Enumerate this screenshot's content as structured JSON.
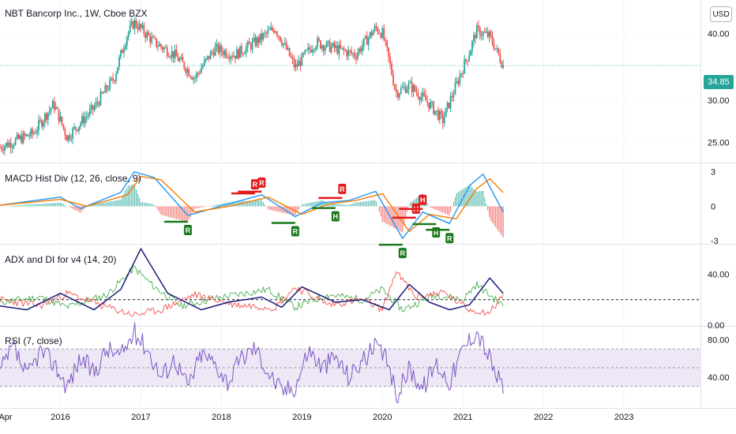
{
  "chart_data": {
    "type": "candlestick",
    "title": "NBT Bancorp Inc., 1W, Cboe BZX",
    "currency": "USD",
    "last_price": "34.85",
    "x_ticks": [
      "Apr",
      "2016",
      "2017",
      "2018",
      "2019",
      "2020",
      "2021",
      "2022",
      "2023"
    ],
    "price_pane": {
      "y_ticks": [
        "40.00",
        "30.00",
        "25.00"
      ],
      "ylim": [
        23,
        45
      ],
      "log_scale": true,
      "series": [
        {
          "date": "2015-04",
          "value": 24.5
        },
        {
          "date": "2015-09",
          "value": 26
        },
        {
          "date": "2015-12",
          "value": 29.5
        },
        {
          "date": "2016-02",
          "value": 25.5
        },
        {
          "date": "2016-06",
          "value": 29
        },
        {
          "date": "2016-09",
          "value": 33
        },
        {
          "date": "2016-11",
          "value": 40
        },
        {
          "date": "2016-12",
          "value": 42
        },
        {
          "date": "2017-03",
          "value": 38.5
        },
        {
          "date": "2017-06",
          "value": 36.5
        },
        {
          "date": "2017-09",
          "value": 33
        },
        {
          "date": "2017-12",
          "value": 37.5
        },
        {
          "date": "2018-03",
          "value": 36.5
        },
        {
          "date": "2018-06",
          "value": 38.5
        },
        {
          "date": "2018-09",
          "value": 41
        },
        {
          "date": "2018-12",
          "value": 34.5
        },
        {
          "date": "2019-03",
          "value": 38.5
        },
        {
          "date": "2019-06",
          "value": 37.5
        },
        {
          "date": "2019-09",
          "value": 36.5
        },
        {
          "date": "2019-12",
          "value": 41
        },
        {
          "date": "2020-01",
          "value": 40
        },
        {
          "date": "2020-03",
          "value": 31
        },
        {
          "date": "2020-05",
          "value": 32
        },
        {
          "date": "2020-08",
          "value": 29.5
        },
        {
          "date": "2020-10",
          "value": 27.5
        },
        {
          "date": "2020-12",
          "value": 32
        },
        {
          "date": "2021-02",
          "value": 37
        },
        {
          "date": "2021-03",
          "value": 40.5
        },
        {
          "date": "2021-05",
          "value": 39.5
        },
        {
          "date": "2021-07",
          "value": 34.85
        }
      ]
    },
    "macd_pane": {
      "title": "MACD Hist Div (12, 26, close, 9)",
      "y_ticks": [
        "3",
        "0",
        "-3"
      ],
      "ylim": [
        -3.2,
        3.6
      ],
      "markers": [
        {
          "label": "R",
          "date": "2017-08",
          "type": "bullish"
        },
        {
          "label": "R",
          "date": "2018-06",
          "type": "bearish"
        },
        {
          "label": "R",
          "date": "2018-07",
          "type": "bearish"
        },
        {
          "label": "R",
          "date": "2018-12",
          "type": "bullish"
        },
        {
          "label": "H",
          "date": "2019-06",
          "type": "bullish"
        },
        {
          "label": "R",
          "date": "2019-07",
          "type": "bearish"
        },
        {
          "label": "R",
          "date": "2020-04",
          "type": "bullish"
        },
        {
          "label": "H",
          "date": "2020-06",
          "type": "bearish"
        },
        {
          "label": "H",
          "date": "2020-07",
          "type": "bearish"
        },
        {
          "label": "R",
          "date": "2020-09",
          "type": "bullish"
        },
        {
          "label": "R",
          "date": "2020-11",
          "type": "bullish"
        }
      ],
      "macd": [
        {
          "date": "2015-04",
          "value": 0.1
        },
        {
          "date": "2016-01",
          "value": 0.8
        },
        {
          "date": "2016-04",
          "value": -0.2
        },
        {
          "date": "2016-10",
          "value": 1.2
        },
        {
          "date": "2016-12",
          "value": 3.0
        },
        {
          "date": "2017-03",
          "value": 2.5
        },
        {
          "date": "2017-08",
          "value": -0.8
        },
        {
          "date": "2018-02",
          "value": 0.2
        },
        {
          "date": "2018-07",
          "value": 1.0
        },
        {
          "date": "2018-12",
          "value": -0.9
        },
        {
          "date": "2019-04",
          "value": 0.3
        },
        {
          "date": "2019-08",
          "value": 0.5
        },
        {
          "date": "2019-12",
          "value": 1.3
        },
        {
          "date": "2020-04",
          "value": -2.8
        },
        {
          "date": "2020-07",
          "value": -0.5
        },
        {
          "date": "2020-11",
          "value": -1.5
        },
        {
          "date": "2021-02",
          "value": 1.8
        },
        {
          "date": "2021-04",
          "value": 2.8
        },
        {
          "date": "2021-07",
          "value": -0.5
        }
      ],
      "signal": [
        {
          "date": "2015-04",
          "value": 0.1
        },
        {
          "date": "2016-01",
          "value": 0.6
        },
        {
          "date": "2016-05",
          "value": 0.0
        },
        {
          "date": "2016-11",
          "value": 1.0
        },
        {
          "date": "2017-01",
          "value": 2.6
        },
        {
          "date": "2017-04",
          "value": 2.3
        },
        {
          "date": "2017-09",
          "value": -0.5
        },
        {
          "date": "2018-03",
          "value": 0.1
        },
        {
          "date": "2018-08",
          "value": 0.8
        },
        {
          "date": "2019-01",
          "value": -0.7
        },
        {
          "date": "2019-05",
          "value": 0.2
        },
        {
          "date": "2019-09",
          "value": 0.5
        },
        {
          "date": "2020-01",
          "value": 1.1
        },
        {
          "date": "2020-05",
          "value": -2.2
        },
        {
          "date": "2020-08",
          "value": -0.7
        },
        {
          "date": "2020-12",
          "value": -1.1
        },
        {
          "date": "2021-03",
          "value": 1.5
        },
        {
          "date": "2021-05",
          "value": 2.4
        },
        {
          "date": "2021-07",
          "value": 1.2
        }
      ]
    },
    "adx_pane": {
      "title": "ADX and DI for v4 (14, 20)",
      "y_ticks": [
        "40.00",
        "0.00"
      ],
      "ylim": [
        0,
        62
      ],
      "threshold": 20,
      "adx": [
        {
          "date": "2015-04",
          "value": 15
        },
        {
          "date": "2015-08",
          "value": 12
        },
        {
          "date": "2016-01",
          "value": 25
        },
        {
          "date": "2016-06",
          "value": 12
        },
        {
          "date": "2016-10",
          "value": 28
        },
        {
          "date": "2017-01",
          "value": 60
        },
        {
          "date": "2017-05",
          "value": 25
        },
        {
          "date": "2017-10",
          "value": 12
        },
        {
          "date": "2018-02",
          "value": 18
        },
        {
          "date": "2018-07",
          "value": 22
        },
        {
          "date": "2018-10",
          "value": 14
        },
        {
          "date": "2019-01",
          "value": 30
        },
        {
          "date": "2019-06",
          "value": 18
        },
        {
          "date": "2019-10",
          "value": 20
        },
        {
          "date": "2020-02",
          "value": 12
        },
        {
          "date": "2020-05",
          "value": 32
        },
        {
          "date": "2020-08",
          "value": 18
        },
        {
          "date": "2020-11",
          "value": 12
        },
        {
          "date": "2021-02",
          "value": 16
        },
        {
          "date": "2021-05",
          "value": 37
        },
        {
          "date": "2021-07",
          "value": 25
        }
      ],
      "plus_di": [
        {
          "date": "2015-04",
          "value": 18
        },
        {
          "date": "2015-10",
          "value": 22
        },
        {
          "date": "2016-02",
          "value": 14
        },
        {
          "date": "2016-08",
          "value": 24
        },
        {
          "date": "2016-12",
          "value": 45
        },
        {
          "date": "2017-03",
          "value": 30
        },
        {
          "date": "2017-07",
          "value": 15
        },
        {
          "date": "2018-01",
          "value": 22
        },
        {
          "date": "2018-08",
          "value": 28
        },
        {
          "date": "2018-12",
          "value": 14
        },
        {
          "date": "2019-05",
          "value": 24
        },
        {
          "date": "2019-10",
          "value": 20
        },
        {
          "date": "2020-01",
          "value": 28
        },
        {
          "date": "2020-04",
          "value": 12
        },
        {
          "date": "2020-09",
          "value": 24
        },
        {
          "date": "2021-01",
          "value": 20
        },
        {
          "date": "2021-03",
          "value": 32
        },
        {
          "date": "2021-07",
          "value": 15
        }
      ],
      "minus_di": [
        {
          "date": "2015-04",
          "value": 20
        },
        {
          "date": "2015-10",
          "value": 15
        },
        {
          "date": "2016-02",
          "value": 25
        },
        {
          "date": "2016-08",
          "value": 14
        },
        {
          "date": "2016-12",
          "value": 8
        },
        {
          "date": "2017-04",
          "value": 12
        },
        {
          "date": "2017-09",
          "value": 24
        },
        {
          "date": "2018-03",
          "value": 16
        },
        {
          "date": "2018-09",
          "value": 14
        },
        {
          "date": "2018-12",
          "value": 30
        },
        {
          "date": "2019-05",
          "value": 16
        },
        {
          "date": "2019-10",
          "value": 20
        },
        {
          "date": "2020-01",
          "value": 12
        },
        {
          "date": "2020-03",
          "value": 42
        },
        {
          "date": "2020-06",
          "value": 22
        },
        {
          "date": "2020-10",
          "value": 26
        },
        {
          "date": "2021-02",
          "value": 12
        },
        {
          "date": "2021-05",
          "value": 10
        },
        {
          "date": "2021-07",
          "value": 24
        }
      ]
    },
    "rsi_pane": {
      "title": "RSI (7, close)",
      "y_ticks": [
        "80.00",
        "40.00"
      ],
      "ylim": [
        8,
        92
      ],
      "upper_band": 70,
      "middle_line": 50,
      "lower_band": 30,
      "rsi": [
        {
          "date": "2015-04",
          "value": 45
        },
        {
          "date": "2015-06",
          "value": 72
        },
        {
          "date": "2015-08",
          "value": 40
        },
        {
          "date": "2015-10",
          "value": 68
        },
        {
          "date": "2015-12",
          "value": 55
        },
        {
          "date": "2016-02",
          "value": 30
        },
        {
          "date": "2016-04",
          "value": 60
        },
        {
          "date": "2016-06",
          "value": 45
        },
        {
          "date": "2016-08",
          "value": 70
        },
        {
          "date": "2016-10",
          "value": 62
        },
        {
          "date": "2016-12",
          "value": 88
        },
        {
          "date": "2017-02",
          "value": 70
        },
        {
          "date": "2017-04",
          "value": 40
        },
        {
          "date": "2017-06",
          "value": 60
        },
        {
          "date": "2017-08",
          "value": 30
        },
        {
          "date": "2017-10",
          "value": 65
        },
        {
          "date": "2017-12",
          "value": 55
        },
        {
          "date": "2018-02",
          "value": 35
        },
        {
          "date": "2018-04",
          "value": 60
        },
        {
          "date": "2018-06",
          "value": 72
        },
        {
          "date": "2018-08",
          "value": 45
        },
        {
          "date": "2018-10",
          "value": 25
        },
        {
          "date": "2018-12",
          "value": 30
        },
        {
          "date": "2019-02",
          "value": 70
        },
        {
          "date": "2019-04",
          "value": 50
        },
        {
          "date": "2019-06",
          "value": 62
        },
        {
          "date": "2019-08",
          "value": 40
        },
        {
          "date": "2019-10",
          "value": 58
        },
        {
          "date": "2019-12",
          "value": 72
        },
        {
          "date": "2020-02",
          "value": 55
        },
        {
          "date": "2020-03",
          "value": 18
        },
        {
          "date": "2020-05",
          "value": 50
        },
        {
          "date": "2020-07",
          "value": 28
        },
        {
          "date": "2020-09",
          "value": 55
        },
        {
          "date": "2020-11",
          "value": 35
        },
        {
          "date": "2021-01",
          "value": 70
        },
        {
          "date": "2021-03",
          "value": 90
        },
        {
          "date": "2021-05",
          "value": 60
        },
        {
          "date": "2021-06",
          "value": 40
        },
        {
          "date": "2021-07",
          "value": 32
        }
      ]
    },
    "colors": {
      "up": "#26a69a",
      "down": "#ef5350",
      "macd": "#2196f3",
      "signal": "#f57c00",
      "adx": "#1a1a7a",
      "plus_di": "#4caf50",
      "minus_di": "#ef5350",
      "rsi": "#7e57c2",
      "rsi_band": "#ede7f6",
      "bull_marker": "#1b7a1b",
      "bear_marker": "#e21b1b"
    }
  }
}
